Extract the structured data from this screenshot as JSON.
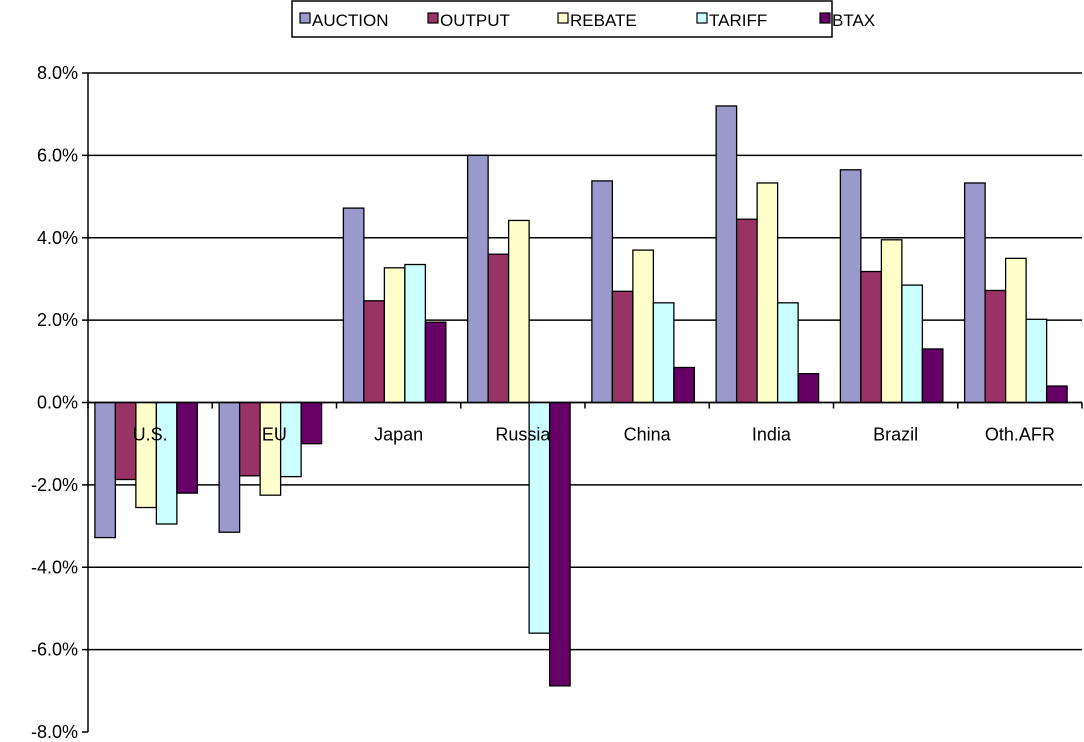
{
  "chart_data": {
    "type": "bar",
    "categories": [
      "U.S.",
      "EU",
      "Japan",
      "Russia",
      "China",
      "India",
      "Brazil",
      "Oth.AFR"
    ],
    "series": [
      {
        "name": "AUCTION",
        "color": "#9999cc",
        "values": [
          -3.28,
          -3.15,
          4.72,
          6.0,
          5.38,
          7.2,
          5.65,
          5.33
        ]
      },
      {
        "name": "OUTPUT",
        "color": "#993366",
        "values": [
          -1.87,
          -1.78,
          2.47,
          3.6,
          2.7,
          4.45,
          3.18,
          2.72
        ]
      },
      {
        "name": "REBATE",
        "color": "#ffffcc",
        "values": [
          -2.55,
          -2.25,
          3.27,
          4.42,
          3.7,
          5.33,
          3.95,
          3.5
        ]
      },
      {
        "name": "TARIFF",
        "color": "#ccffff",
        "values": [
          -2.95,
          -1.8,
          3.35,
          -5.6,
          2.42,
          2.42,
          2.85,
          2.02
        ]
      },
      {
        "name": "BTAX",
        "color": "#660066",
        "values": [
          -2.2,
          -1.0,
          1.95,
          -6.88,
          0.85,
          0.7,
          1.3,
          0.4
        ]
      }
    ],
    "yticks": [
      "8.0%",
      "6.0%",
      "4.0%",
      "2.0%",
      "0.0%",
      "-2.0%",
      "-4.0%",
      "-6.0%",
      "-8.0%"
    ],
    "ylim": [
      -8,
      8
    ],
    "grid": true,
    "legend_position": "top"
  }
}
